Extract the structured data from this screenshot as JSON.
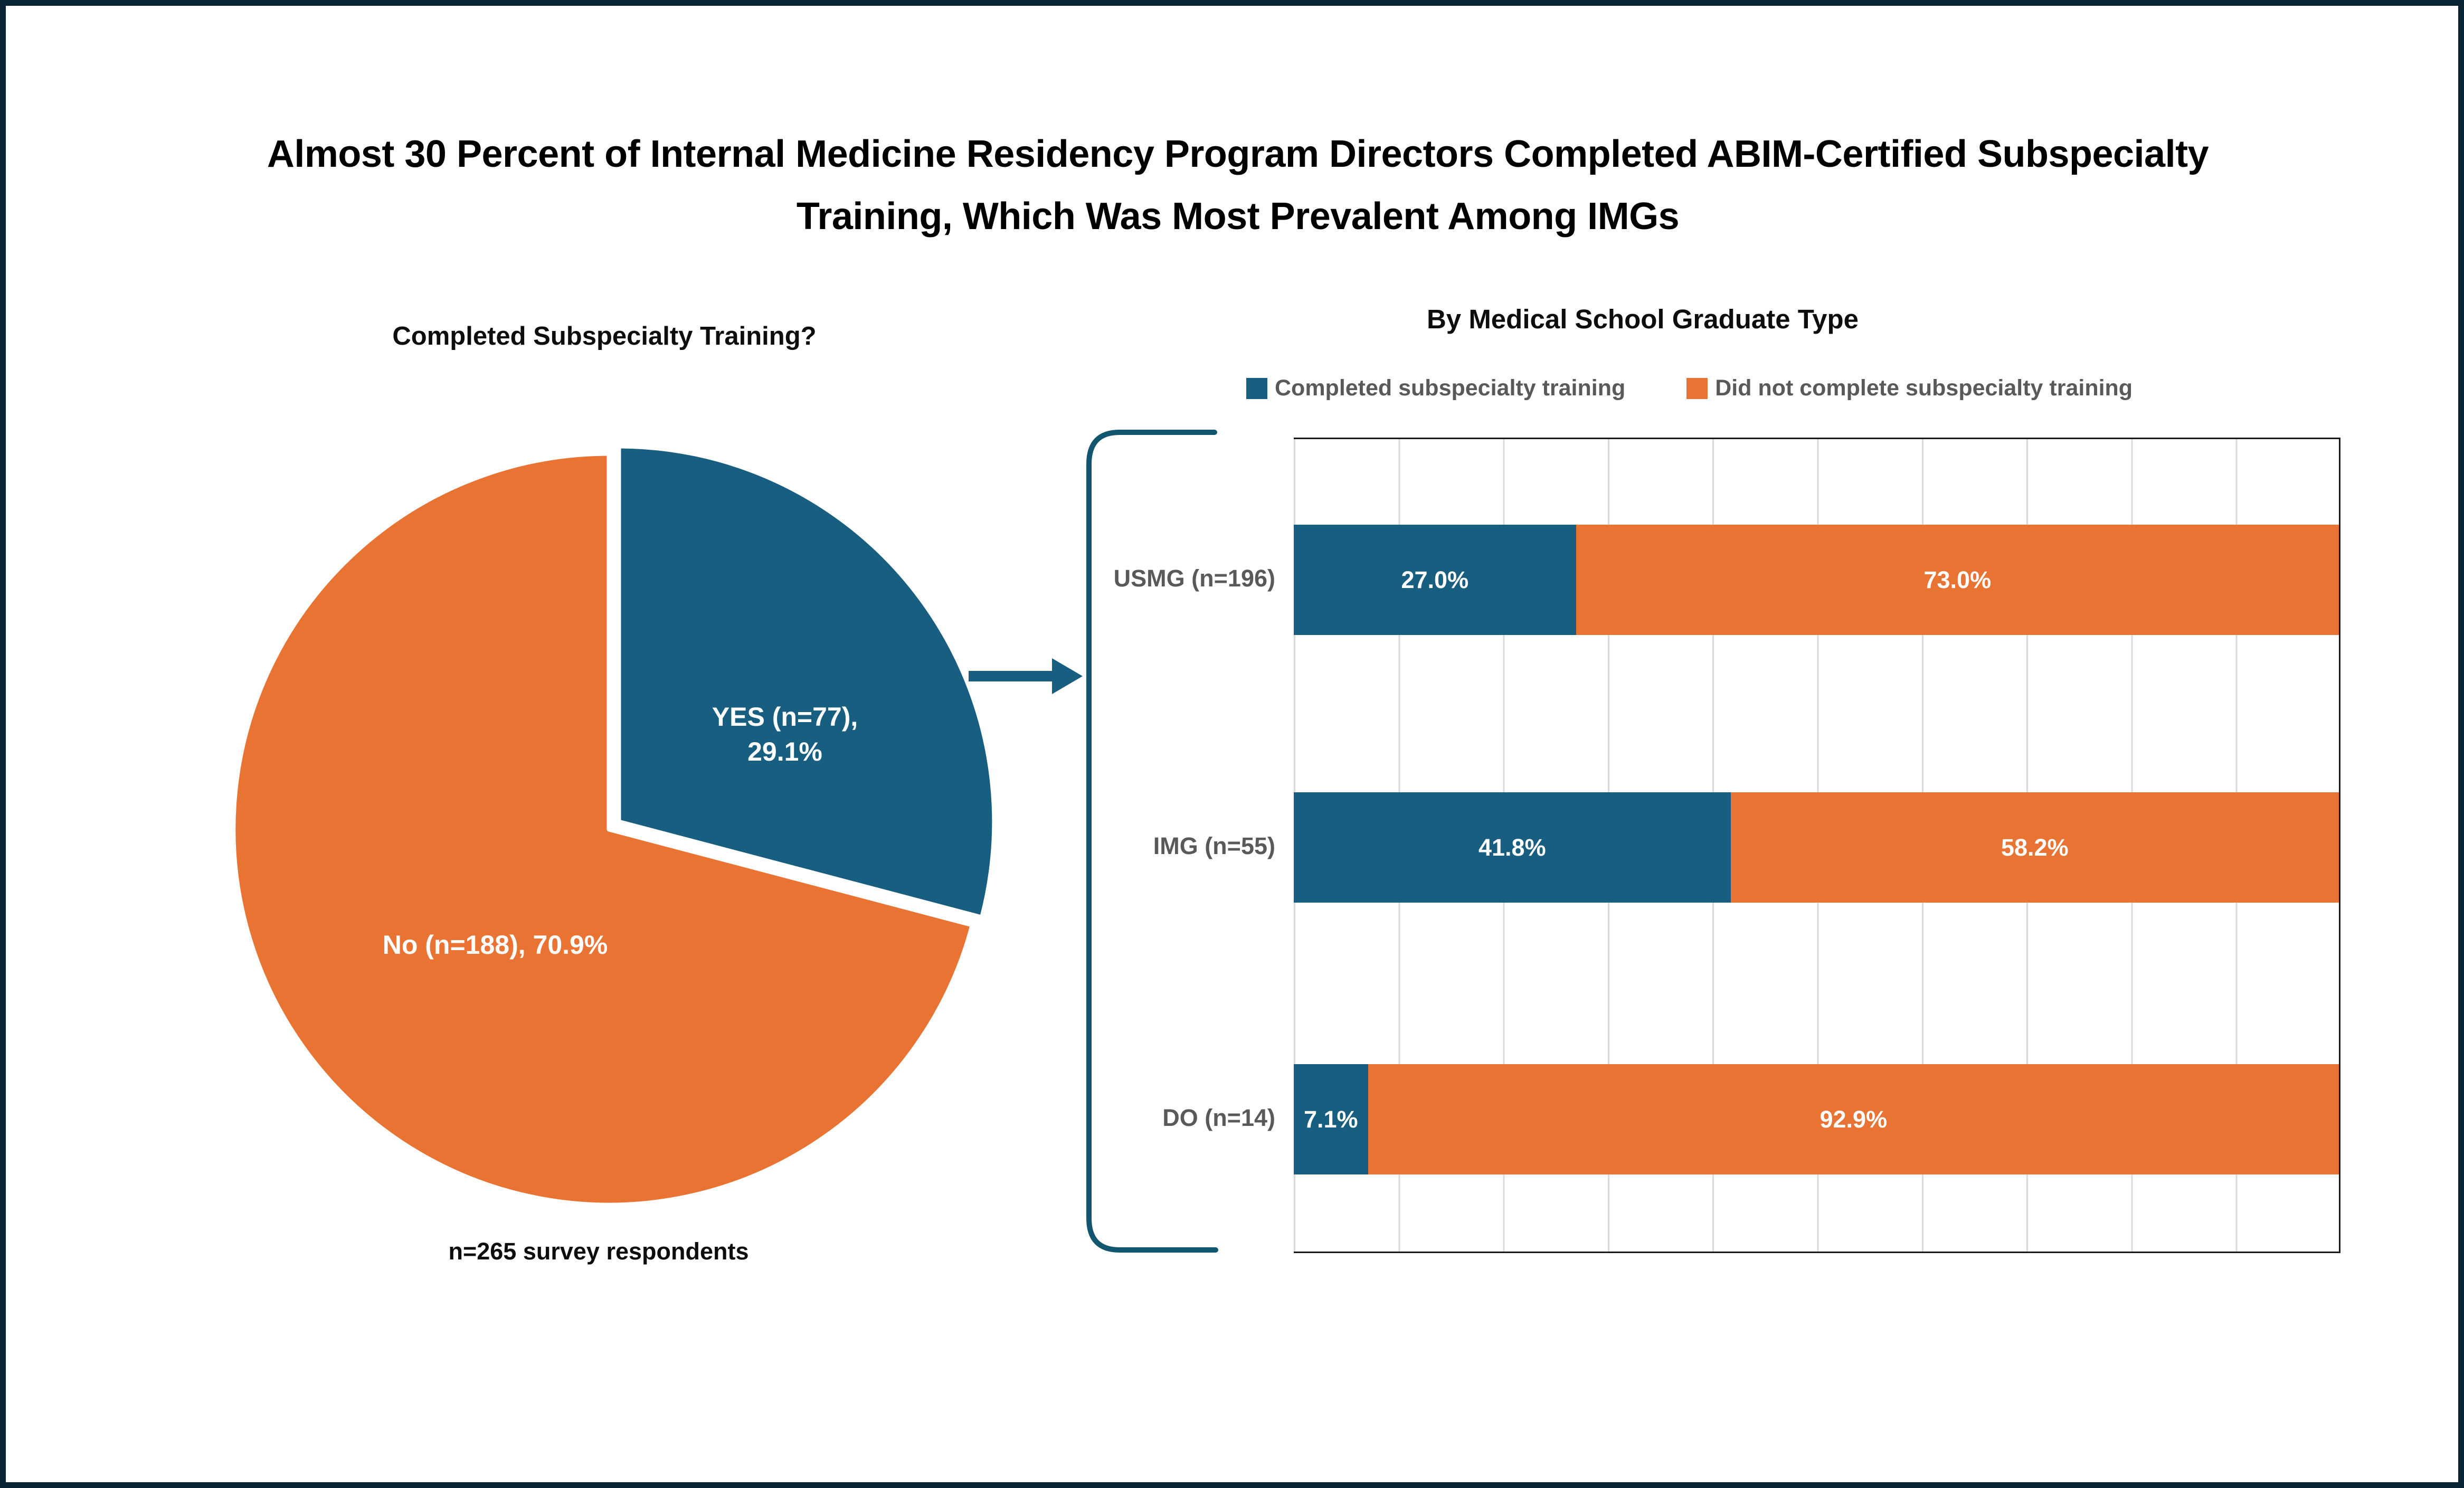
{
  "figure": {
    "title_line1": "Almost 30 Percent of Internal Medicine Residency Program Directors Completed ABIM-Certified Subspecialty",
    "title_line2": "Training, Which Was Most Prevalent Among IMGs"
  },
  "pie": {
    "title": "Completed Subspecialty Training?",
    "yes_label_line1": "YES (n=77),",
    "yes_label_line2": "29.1%",
    "no_label": "No (n=188), 70.9%",
    "note": "n=265 survey respondents"
  },
  "bar": {
    "title": "By Medical School Graduate Type",
    "legend": [
      {
        "label": "Completed subspecialty training",
        "color": "#175E81"
      },
      {
        "label": "Did not complete subspecialty training",
        "color": "#E87332"
      }
    ],
    "rows": [
      {
        "category": "USMG (n=196)",
        "yes_pct": 27.0,
        "yes_label": "27.0%",
        "no_label": "73.0%"
      },
      {
        "category": "IMG (n=55)",
        "yes_pct": 41.8,
        "yes_label": "41.8%",
        "no_label": "58.2%"
      },
      {
        "category": "DO (n=14)",
        "yes_pct": 7.1,
        "yes_label": "7.1%",
        "no_label": "92.9%"
      }
    ]
  },
  "colors": {
    "yes_blue": "#175E81",
    "no_orange": "#E87332",
    "frame_navy": "#0B2433",
    "bracket_teal": "#12556E",
    "gridline_gray": "#D9D9D9",
    "muted_text_gray": "#595959"
  },
  "chart_data": [
    {
      "type": "pie",
      "title": "Completed Subspecialty Training?",
      "labels": [
        "YES (n=77)",
        "No (n=188)"
      ],
      "values": [
        29.1,
        70.9
      ],
      "counts": [
        77,
        188
      ],
      "total_n": 265,
      "colors": [
        "#175E81",
        "#E87332"
      ],
      "annotation": "n=265 survey respondents",
      "start_angle_deg": 0,
      "direction": "clockwise",
      "exploded_slice": "YES (n=77)",
      "data_label_format": "label (n=count), 0.0%"
    },
    {
      "type": "bar",
      "orientation": "horizontal-stacked",
      "title": "By Medical School Graduate Type",
      "categories": [
        "USMG (n=196)",
        "IMG (n=55)",
        "DO (n=14)"
      ],
      "series": [
        {
          "name": "Completed subspecialty training",
          "color": "#175E81",
          "values": [
            27.0,
            41.8,
            7.1
          ]
        },
        {
          "name": "Did not complete subspecialty training",
          "color": "#E87332",
          "values": [
            73.0,
            58.2,
            92.9
          ]
        }
      ],
      "xlim": [
        0,
        100
      ],
      "gridlines": {
        "interval_pct": 10,
        "visible": true
      },
      "legend_position": "top",
      "value_label_format": "0.0%",
      "value_labels_inside_bars": true
    }
  ]
}
